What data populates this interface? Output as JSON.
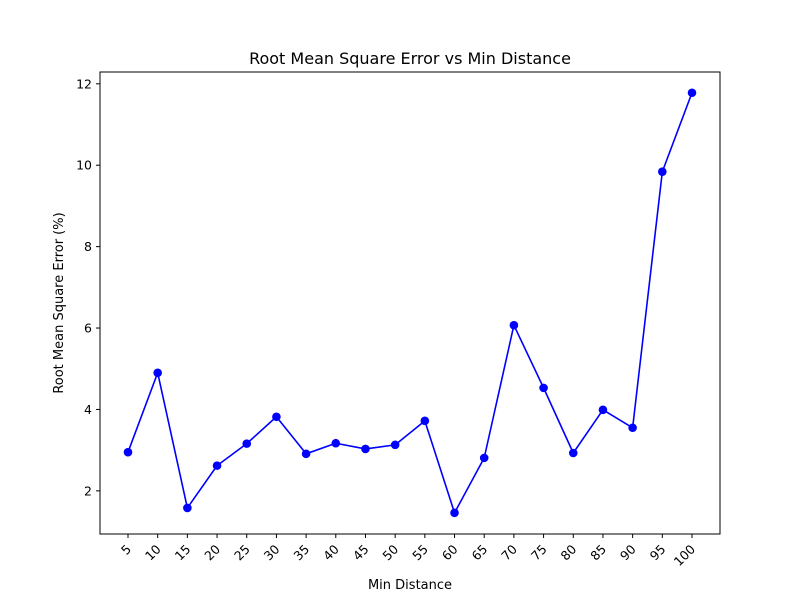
{
  "chart_data": {
    "type": "line",
    "title": "Root Mean Square Error vs Min Distance",
    "xlabel": "Min Distance",
    "ylabel": "Root Mean Square Error (%)",
    "x": [
      5,
      10,
      15,
      20,
      25,
      30,
      35,
      40,
      45,
      50,
      55,
      60,
      65,
      70,
      75,
      80,
      85,
      90,
      95,
      100
    ],
    "x_tick_labels": [
      "5",
      "10",
      "15",
      "20",
      "25",
      "30",
      "35",
      "40",
      "45",
      "50",
      "55",
      "60",
      "65",
      "70",
      "75",
      "80",
      "85",
      "90",
      "95",
      "100"
    ],
    "y_ticks": [
      2,
      4,
      6,
      8,
      10,
      12
    ],
    "y_tick_labels": [
      "2",
      "4",
      "6",
      "8",
      "10",
      "12"
    ],
    "ylim": [
      0.94,
      12.29
    ],
    "grid": false,
    "series": [
      {
        "values": [
          2.95,
          4.9,
          1.58,
          2.62,
          3.16,
          3.82,
          2.91,
          3.17,
          3.03,
          3.13,
          3.72,
          1.46,
          2.81,
          6.07,
          4.53,
          2.93,
          3.99,
          3.55,
          9.84,
          11.78
        ],
        "color": "#0000ff",
        "marker": "circle"
      }
    ]
  }
}
